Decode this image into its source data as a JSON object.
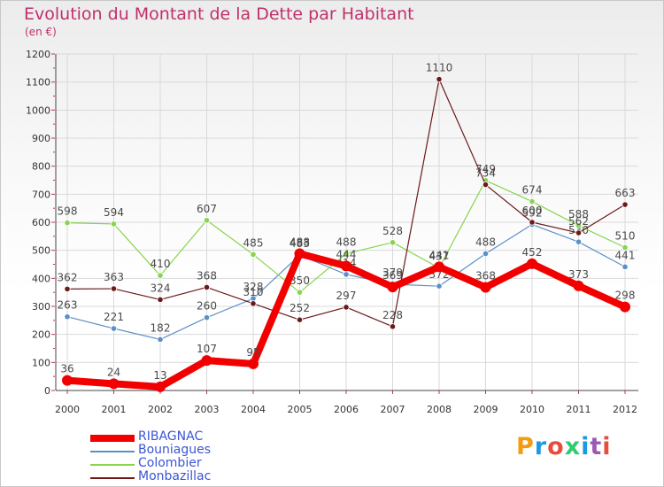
{
  "header": {
    "title": "Evolution du Montant de la Dette par Habitant",
    "subtitle": "(en €)"
  },
  "logo": {
    "text": "Proxiti",
    "colors": [
      "#f39c12",
      "#1a9be0",
      "#e74c3c",
      "#2ecc71",
      "#1a9be0",
      "#9b59b6",
      "#e74c3c"
    ]
  },
  "chart_data": {
    "type": "line",
    "x": [
      2000,
      2001,
      2002,
      2003,
      2004,
      2005,
      2006,
      2007,
      2008,
      2009,
      2010,
      2011,
      2012
    ],
    "ylim": [
      0,
      1200
    ],
    "yticks": [
      0,
      100,
      200,
      300,
      400,
      500,
      600,
      700,
      800,
      900,
      1000,
      1100,
      1200
    ],
    "grid": true,
    "legend_position": "bottom-left",
    "series": [
      {
        "name": "Bouniagues",
        "color": "#5b8fc7",
        "text_color": "#3a55d6",
        "width": 1.2,
        "values": [
          263,
          221,
          182,
          260,
          328,
          483,
          414,
          379,
          372,
          488,
          592,
          530,
          441
        ],
        "labels": [
          "263",
          "221",
          "182",
          "260",
          "328",
          "483",
          "414",
          "379",
          "372",
          "488",
          "592",
          "530",
          "441"
        ]
      },
      {
        "name": "Colombier",
        "color": "#88d44e",
        "text_color": "#3a55d6",
        "width": 1.2,
        "values": [
          598,
          594,
          410,
          607,
          485,
          350,
          488,
          528,
          437,
          749,
          674,
          588,
          510
        ],
        "labels": [
          "598",
          "594",
          "410",
          "607",
          "485",
          "350",
          "488",
          "528",
          "437",
          "749",
          "674",
          "588",
          "510"
        ]
      },
      {
        "name": "Monbazillac",
        "color": "#6b1a1a",
        "text_color": "#3a55d6",
        "width": 1.2,
        "values": [
          362,
          363,
          324,
          368,
          310,
          252,
          297,
          228,
          1110,
          734,
          600,
          562,
          663
        ],
        "labels": [
          "362",
          "363",
          "324",
          "368",
          "310",
          "252",
          "297",
          "228",
          "1110",
          "734",
          "600",
          "562",
          "663"
        ]
      },
      {
        "name": "RIBAGNAC",
        "color": "#f20000",
        "text_color": "#3a55d6",
        "width": 8,
        "values": [
          36,
          24,
          13,
          107,
          95,
          488,
          444,
          369,
          441,
          368,
          452,
          373,
          298
        ],
        "labels": [
          "36",
          "24",
          "13",
          "107",
          "95",
          "488",
          "444",
          "369",
          "441",
          "368",
          "452",
          "373",
          "298"
        ]
      }
    ],
    "legend": [
      "RIBAGNAC",
      "Bouniagues",
      "Colombier",
      "Monbazillac"
    ]
  }
}
